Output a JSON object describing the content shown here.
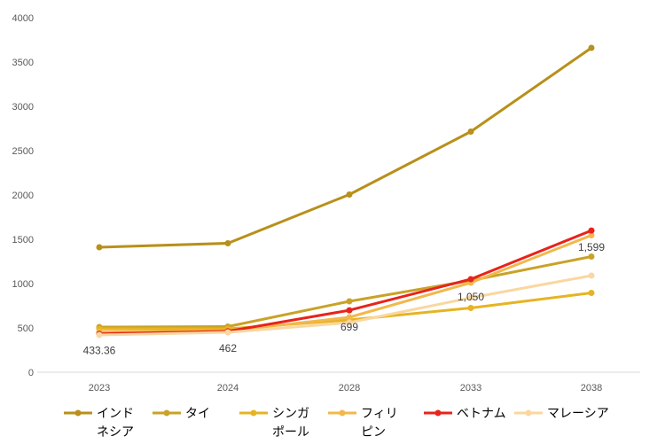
{
  "chart_data": {
    "type": "line",
    "title": "",
    "xlabel": "",
    "ylabel": "",
    "categories": [
      "2023",
      "2024",
      "2028",
      "2033",
      "2038"
    ],
    "ylim": [
      0,
      4000
    ],
    "yticks": [
      "0",
      "500",
      "1000",
      "1500",
      "2000",
      "2500",
      "3000",
      "3500",
      "4000"
    ],
    "grid": false,
    "legend_position": "bottom",
    "series": [
      {
        "name": "インドネシア",
        "legend_lines": [
          "インド",
          "ネシア"
        ],
        "color": "#B8901A",
        "values": [
          1410,
          1455,
          2005,
          2715,
          3660
        ]
      },
      {
        "name": "タイ",
        "legend_lines": [
          "タイ"
        ],
        "color": "#C9A227",
        "values": [
          510,
          515,
          800,
          1035,
          1305
        ]
      },
      {
        "name": "シンガポール",
        "legend_lines": [
          "シンガ",
          "ポール"
        ],
        "color": "#E6B422",
        "values": [
          490,
          490,
          590,
          725,
          895
        ]
      },
      {
        "name": "フィリピン",
        "legend_lines": [
          "フィリ",
          "ピン"
        ],
        "color": "#F2B84B",
        "values": [
          455,
          465,
          620,
          1010,
          1545
        ]
      },
      {
        "name": "ベトナム",
        "legend_lines": [
          "ベトナム"
        ],
        "color": "#E8231B",
        "values": [
          433.36,
          462,
          699,
          1050,
          1599
        ]
      },
      {
        "name": "マレーシア",
        "legend_lines": [
          "マレーシア"
        ],
        "color": "#FAD7A0",
        "values": [
          420,
          450,
          560,
          840,
          1090
        ]
      }
    ],
    "data_labels": [
      {
        "series": "ベトナム",
        "category": "2023",
        "text": "433.36"
      },
      {
        "series": "ベトナム",
        "category": "2024",
        "text": "462"
      },
      {
        "series": "ベトナム",
        "category": "2028",
        "text": "699"
      },
      {
        "series": "ベトナム",
        "category": "2033",
        "text": "1,050"
      },
      {
        "series": "ベトナム",
        "category": "2038",
        "text": "1,599"
      }
    ]
  }
}
